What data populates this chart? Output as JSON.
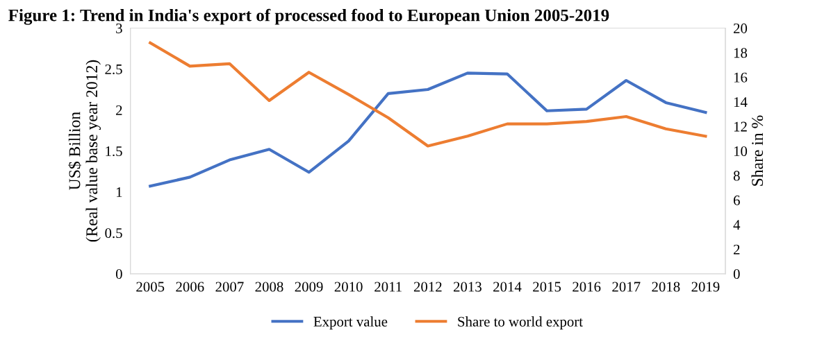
{
  "chart_data": {
    "type": "line",
    "title": "Figure 1: Trend in India's export of processed food to European Union 2005-2019",
    "ylabel": "US$ Billion\n(Real value base year 2012)",
    "y2label": "Share in %",
    "categories": [
      "2005",
      "2006",
      "2007",
      "2008",
      "2009",
      "2010",
      "2011",
      "2012",
      "2013",
      "2014",
      "2015",
      "2016",
      "2017",
      "2018",
      "2019"
    ],
    "series": [
      {
        "name": "Export value",
        "color": "#4472c4",
        "values": [
          1.07,
          1.18,
          1.39,
          1.52,
          1.24,
          1.62,
          2.2,
          2.25,
          2.45,
          2.44,
          1.99,
          2.01,
          2.36,
          2.09,
          1.97
        ]
      },
      {
        "name": "Share to world export",
        "color": "#ed7d31",
        "axis": "y2",
        "values": [
          18.8,
          16.9,
          17.1,
          14.1,
          16.4,
          14.6,
          12.7,
          10.4,
          11.2,
          12.2,
          12.2,
          12.4,
          12.8,
          11.8,
          11.2
        ]
      }
    ],
    "ylim": [
      0,
      3
    ],
    "yticks": [
      0,
      {
        "value": 0.5,
        "label": "0.5"
      },
      1,
      {
        "value": 1.5,
        "label": "1.5"
      },
      2,
      {
        "value": 2.5,
        "label": "2.5"
      },
      3
    ],
    "y2lim": [
      0,
      20
    ],
    "y2ticks": [
      0,
      2,
      4,
      6,
      8,
      10,
      12,
      14,
      16,
      18,
      20
    ],
    "grid": false,
    "legend": "bottom",
    "marker": "none",
    "line_style": "solid"
  }
}
